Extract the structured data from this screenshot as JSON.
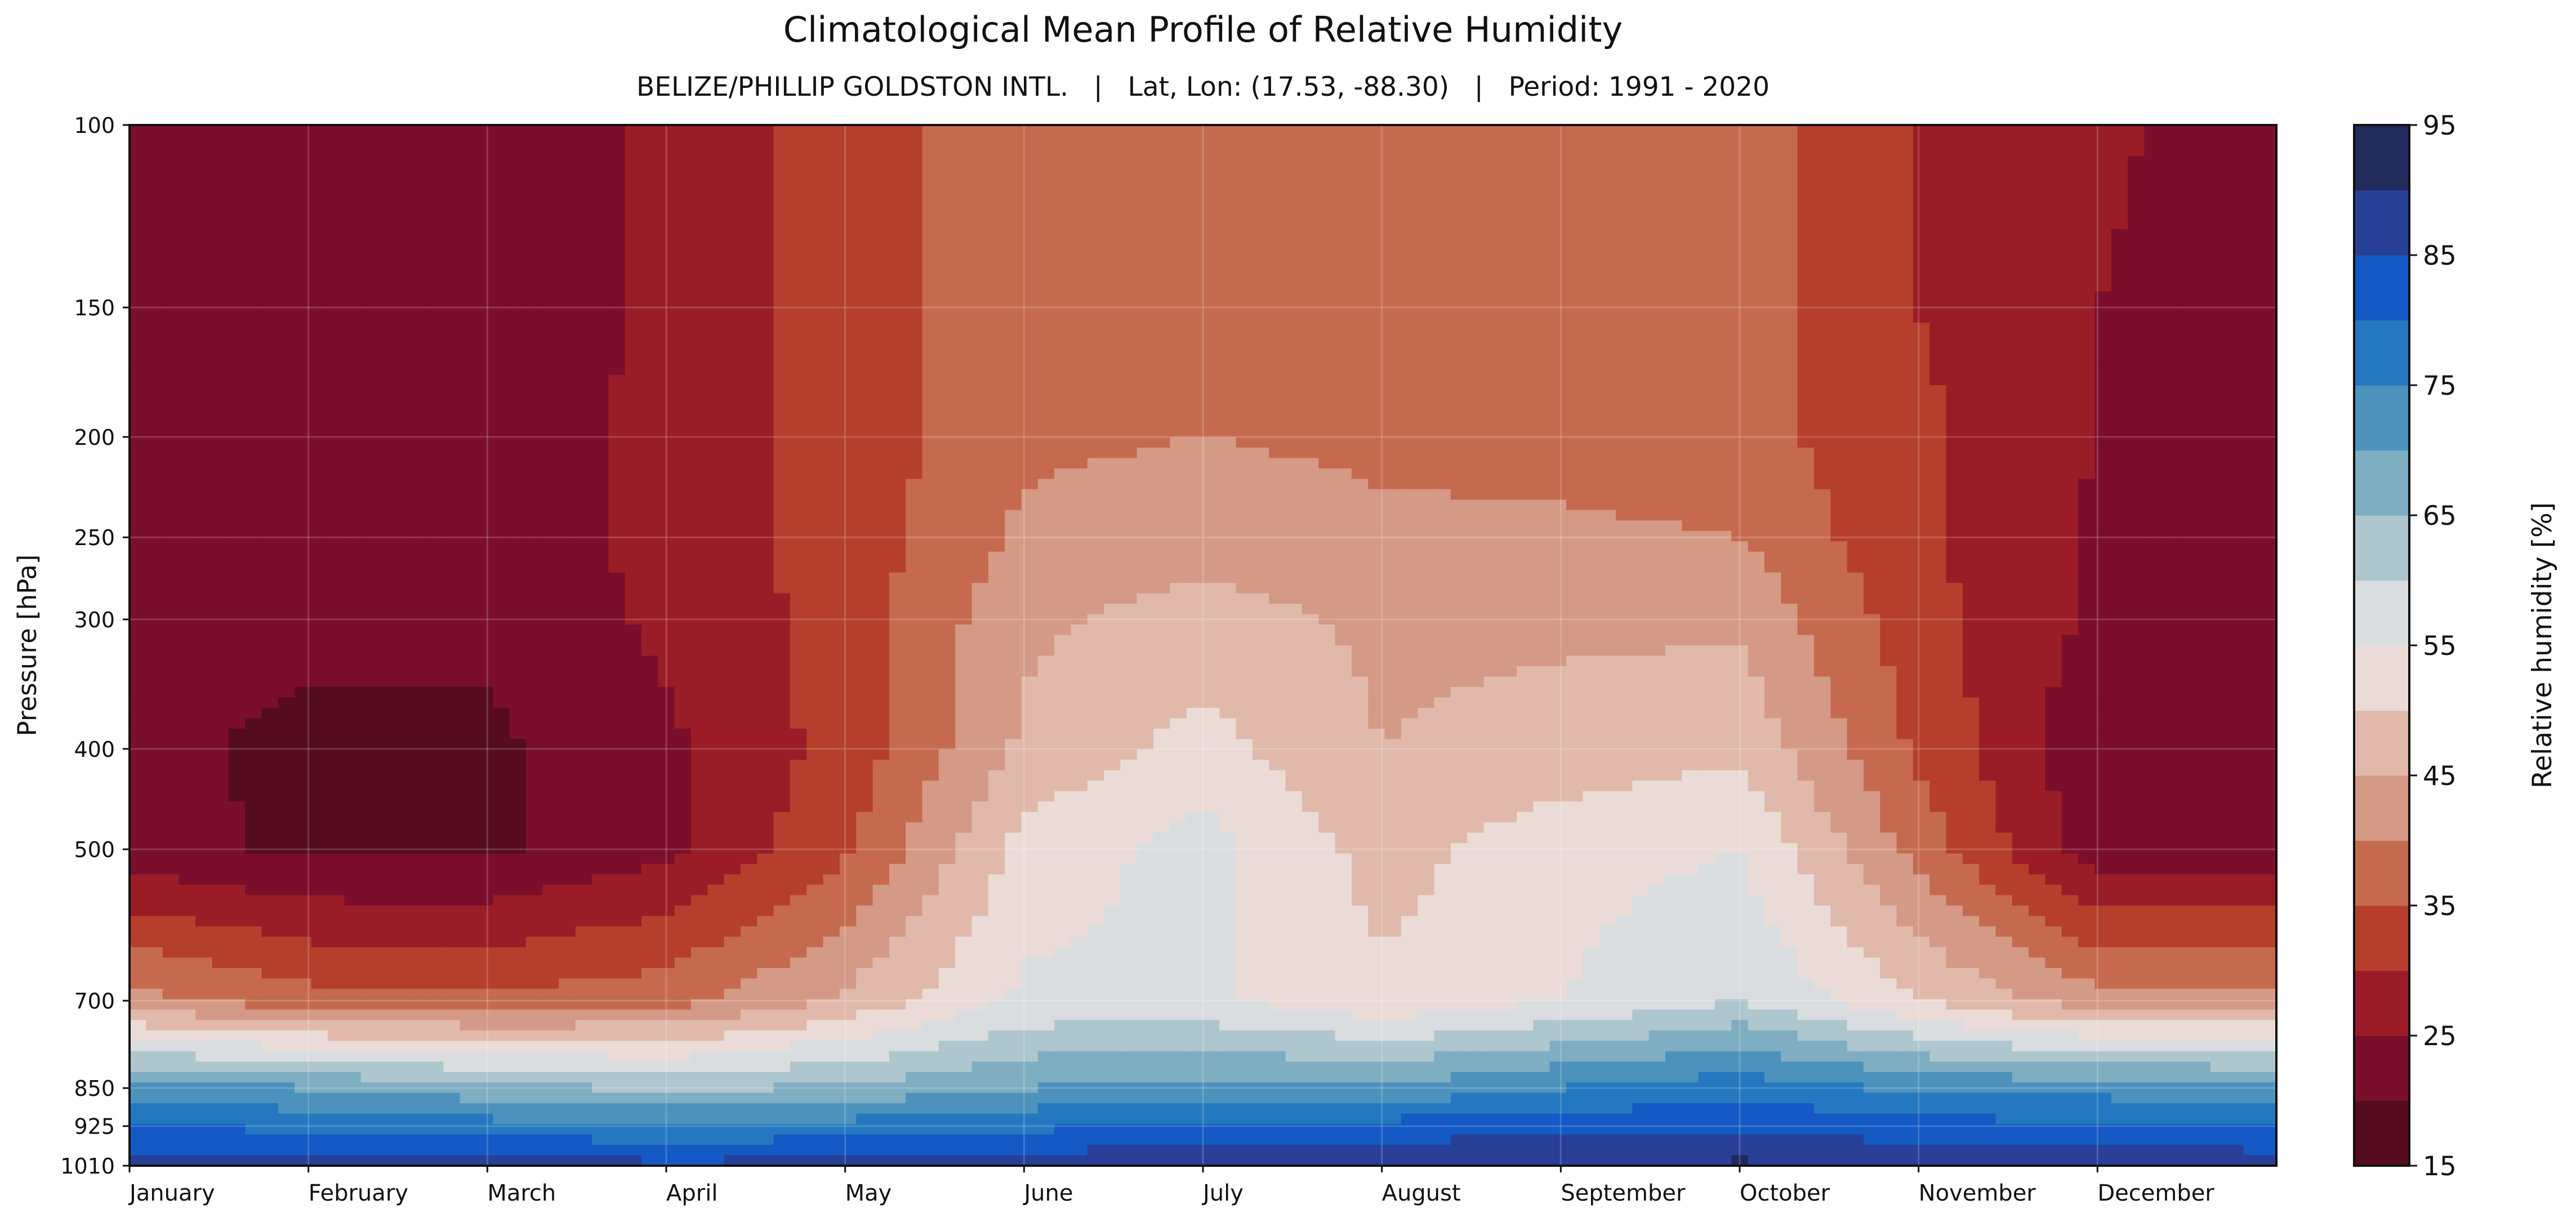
{
  "chart_data": {
    "type": "heatmap",
    "plot_style": "filled contour (month vs. pressure level)",
    "title": "Climatological Mean Profile of Relative Humidity",
    "subtitle": "BELIZE/PHILLIP GOLDSTON INTL.   |   Lat, Lon: (17.53, -88.30)   |   Period: 1991 - 2020",
    "xlabel": "",
    "ylabel": "Pressure [hPa]",
    "x_ticks": [
      "January",
      "February",
      "March",
      "April",
      "May",
      "June",
      "July",
      "August",
      "September",
      "October",
      "November",
      "December"
    ],
    "y_axis": "log-pressure, inverted (surface at bottom)",
    "y_ticks": [
      100,
      150,
      200,
      250,
      300,
      400,
      500,
      700,
      850,
      925,
      1010
    ],
    "ylim": [
      1010,
      100
    ],
    "grid": true,
    "colorbar": {
      "label": "Relative humidity [%]",
      "range": [
        15,
        95
      ],
      "level_step": 5,
      "tick_labels": [
        "15",
        "25",
        "35",
        "45",
        "55",
        "65",
        "75",
        "85",
        "95"
      ],
      "levels": [
        15,
        20,
        25,
        30,
        35,
        40,
        45,
        50,
        55,
        60,
        65,
        70,
        75,
        80,
        85,
        90,
        95
      ],
      "colors": [
        "#540c1e",
        "#7b0e2b",
        "#9a1c26",
        "#b63e2c",
        "#c56a4f",
        "#d49a85",
        "#e0b9aa",
        "#eadbd6",
        "#d9dde0",
        "#aec6cd",
        "#7fadc2",
        "#4c92bd",
        "#2478bf",
        "#1459c4",
        "#283f98",
        "#202a5b"
      ]
    },
    "x_month_time": [
      0,
      1,
      2,
      3,
      4,
      5,
      6,
      7,
      8,
      9,
      10,
      11,
      12
    ],
    "pressure_levels": [
      100,
      150,
      200,
      250,
      300,
      400,
      500,
      700,
      850,
      925,
      1010
    ],
    "values": [
      [
        22,
        21,
        21,
        26,
        33,
        38,
        40,
        39,
        38,
        37,
        30,
        26,
        22
      ],
      [
        22,
        21,
        21,
        26,
        33,
        38,
        40,
        39,
        38,
        37,
        30,
        25,
        22
      ],
      [
        22,
        21,
        21,
        27,
        32,
        39,
        40,
        39,
        38,
        37,
        31,
        25,
        22
      ],
      [
        22,
        21,
        21,
        27,
        32,
        41,
        43,
        41,
        41,
        40,
        31,
        24,
        22
      ],
      [
        22,
        21,
        21,
        26,
        32,
        44,
        47,
        44,
        44,
        44,
        32,
        24,
        22
      ],
      [
        21,
        19,
        19,
        24,
        32,
        46,
        52,
        45,
        47,
        49,
        34,
        21,
        21
      ],
      [
        22,
        19,
        19,
        24,
        34,
        52,
        57,
        48,
        53,
        55,
        38,
        22,
        22
      ],
      [
        42,
        37,
        36,
        38,
        46,
        56,
        56,
        51,
        55,
        60,
        50,
        42,
        42
      ],
      [
        72,
        70,
        67,
        64,
        66,
        70,
        72,
        71,
        75,
        78,
        74,
        73,
        72
      ],
      [
        80,
        79,
        77,
        76,
        77,
        79,
        81,
        82,
        83,
        84,
        82,
        81,
        80
      ],
      [
        88,
        88,
        88,
        86,
        87,
        88,
        89,
        90,
        90,
        91,
        89,
        89,
        88
      ]
    ]
  }
}
